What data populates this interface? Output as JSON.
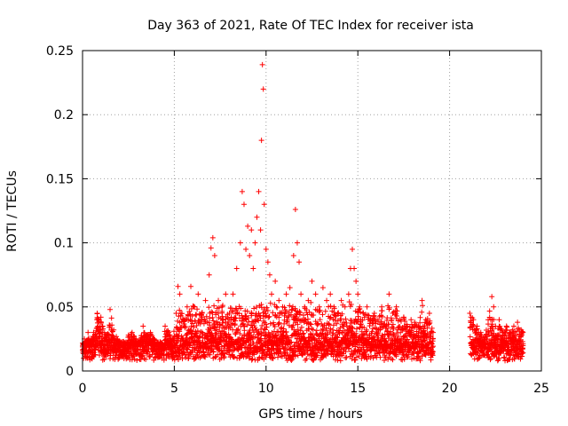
{
  "chart_data": {
    "type": "scatter",
    "title": "Day 363 of 2021, Rate Of TEC Index for receiver ista",
    "xlabel": "GPS time / hours",
    "ylabel": "ROTI / TECUs",
    "xlim": [
      0,
      25
    ],
    "ylim": [
      0,
      0.25
    ],
    "x_ticks": [
      0,
      5,
      10,
      15,
      20,
      25
    ],
    "x_tick_labels": [
      "0",
      "5",
      "10",
      "15",
      "20",
      "25"
    ],
    "y_ticks": [
      0,
      0.05,
      0.1,
      0.15,
      0.2,
      0.25
    ],
    "y_tick_labels": [
      "0",
      "0.05",
      "0.1",
      "0.15",
      "0.2",
      "0.25"
    ],
    "grid": true,
    "marker": "+",
    "color": "#ff0000",
    "data_gap_hours": [
      19.1,
      21.1
    ],
    "series": [
      {
        "name": "ROTI",
        "x": [
          0.0,
          0.1,
          0.2,
          0.3,
          0.4,
          0.6,
          0.8,
          0.9,
          1.0,
          1.1,
          1.2,
          1.3,
          1.5,
          1.7,
          1.9,
          2.1,
          2.3,
          2.5,
          2.7,
          2.9,
          3.1,
          3.3,
          3.5,
          3.7,
          3.9,
          4.1,
          4.3,
          4.5,
          4.7,
          4.9,
          5.1,
          5.2,
          5.3,
          5.5,
          5.7,
          5.9,
          6.1,
          6.3,
          6.5,
          6.7,
          6.9,
          7.0,
          7.1,
          7.2,
          7.4,
          7.6,
          7.8,
          8.0,
          8.2,
          8.4,
          8.6,
          8.7,
          8.8,
          8.9,
          9.0,
          9.1,
          9.2,
          9.3,
          9.4,
          9.5,
          9.6,
          9.7,
          9.75,
          9.8,
          9.85,
          9.9,
          10.0,
          10.1,
          10.2,
          10.3,
          10.5,
          10.7,
          10.9,
          11.1,
          11.3,
          11.5,
          11.6,
          11.7,
          11.8,
          11.9,
          12.1,
          12.3,
          12.5,
          12.7,
          12.9,
          13.1,
          13.3,
          13.5,
          13.7,
          13.9,
          14.1,
          14.3,
          14.5,
          14.6,
          14.7,
          14.8,
          14.9,
          15.0,
          15.1,
          15.3,
          15.5,
          15.7,
          15.9,
          16.1,
          16.3,
          16.5,
          16.7,
          16.9,
          17.1,
          17.3,
          17.5,
          17.7,
          17.9,
          18.1,
          18.3,
          18.5,
          18.7,
          18.9,
          19.1,
          21.1,
          21.3,
          21.5,
          21.7,
          21.9,
          22.1,
          22.3,
          22.4,
          22.5,
          22.7,
          22.9,
          23.1,
          23.3,
          23.5,
          23.7,
          23.9,
          24.0
        ],
        "y": [
          0.02,
          0.025,
          0.02,
          0.03,
          0.022,
          0.03,
          0.045,
          0.04,
          0.042,
          0.035,
          0.03,
          0.028,
          0.048,
          0.032,
          0.025,
          0.022,
          0.02,
          0.028,
          0.03,
          0.025,
          0.022,
          0.035,
          0.028,
          0.03,
          0.025,
          0.022,
          0.02,
          0.035,
          0.03,
          0.025,
          0.045,
          0.066,
          0.06,
          0.04,
          0.05,
          0.066,
          0.05,
          0.06,
          0.045,
          0.055,
          0.075,
          0.096,
          0.104,
          0.09,
          0.055,
          0.05,
          0.06,
          0.045,
          0.06,
          0.08,
          0.1,
          0.14,
          0.13,
          0.095,
          0.113,
          0.09,
          0.11,
          0.08,
          0.1,
          0.12,
          0.14,
          0.11,
          0.18,
          0.239,
          0.22,
          0.13,
          0.095,
          0.085,
          0.075,
          0.06,
          0.07,
          0.055,
          0.05,
          0.06,
          0.065,
          0.09,
          0.126,
          0.1,
          0.085,
          0.06,
          0.05,
          0.055,
          0.07,
          0.06,
          0.05,
          0.065,
          0.055,
          0.06,
          0.05,
          0.045,
          0.055,
          0.05,
          0.06,
          0.08,
          0.095,
          0.08,
          0.07,
          0.06,
          0.05,
          0.045,
          0.05,
          0.04,
          0.045,
          0.04,
          0.05,
          0.035,
          0.06,
          0.045,
          0.05,
          0.04,
          0.042,
          0.035,
          0.04,
          0.038,
          0.035,
          0.055,
          0.04,
          0.045,
          0.03,
          0.045,
          0.04,
          0.035,
          0.03,
          0.025,
          0.04,
          0.058,
          0.05,
          0.035,
          0.04,
          0.03,
          0.035,
          0.03,
          0.035,
          0.038,
          0.032,
          0.03
        ]
      }
    ]
  }
}
